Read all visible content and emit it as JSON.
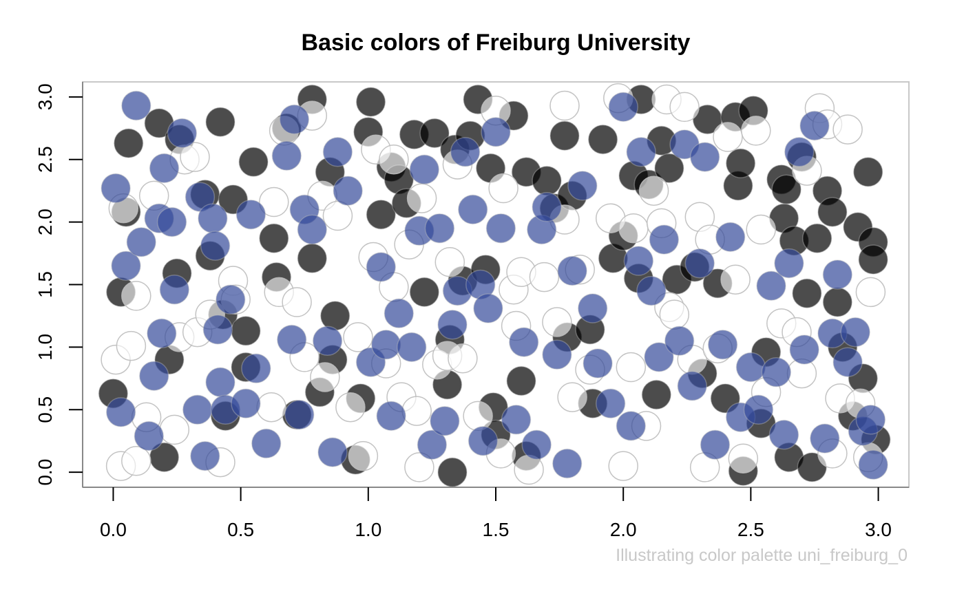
{
  "chart_data": {
    "type": "scatter",
    "title": "Basic colors of Freiburg University",
    "caption": "Illustrating color palette uni_freiburg_0",
    "xlabel": "",
    "ylabel": "",
    "xlim": [
      -0.12,
      3.12
    ],
    "ylim": [
      -0.12,
      3.12
    ],
    "x_ticks": [
      0.0,
      0.5,
      1.0,
      1.5,
      2.0,
      2.5,
      3.0
    ],
    "y_ticks": [
      0.0,
      0.5,
      1.0,
      1.5,
      2.0,
      2.5,
      3.0
    ],
    "x_tick_labels": [
      "0.0",
      "0.5",
      "1.0",
      "1.5",
      "2.0",
      "2.5",
      "3.0"
    ],
    "y_tick_labels": [
      "0.0",
      "0.5",
      "1.0",
      "1.5",
      "2.0",
      "2.5",
      "3.0"
    ],
    "grid": false,
    "palette": [
      "#000000",
      "#ffffff",
      "#344a9a"
    ],
    "series": [
      {
        "color": "#000000",
        "points": [
          [
            0.0,
            0.63
          ],
          [
            0.03,
            1.44
          ],
          [
            0.05,
            2.08
          ],
          [
            0.06,
            2.63
          ],
          [
            0.18,
            2.79
          ],
          [
            0.2,
            0.12
          ],
          [
            0.22,
            0.9
          ],
          [
            0.25,
            1.59
          ],
          [
            0.26,
            2.66
          ],
          [
            0.36,
            2.22
          ],
          [
            0.38,
            1.73
          ],
          [
            0.42,
            2.8
          ],
          [
            0.43,
            1.26
          ],
          [
            0.44,
            0.45
          ],
          [
            0.47,
            2.18
          ],
          [
            0.52,
            0.84
          ],
          [
            0.52,
            1.13
          ],
          [
            0.55,
            2.48
          ],
          [
            0.63,
            1.87
          ],
          [
            0.64,
            1.56
          ],
          [
            0.68,
            2.75
          ],
          [
            0.72,
            0.46
          ],
          [
            0.78,
            2.98
          ],
          [
            0.78,
            1.71
          ],
          [
            0.81,
            0.64
          ],
          [
            0.85,
            2.4
          ],
          [
            0.86,
            0.9
          ],
          [
            0.87,
            1.25
          ],
          [
            0.95,
            0.1
          ],
          [
            0.97,
            0.59
          ],
          [
            1.0,
            2.72
          ],
          [
            1.01,
            2.96
          ],
          [
            1.05,
            2.06
          ],
          [
            1.09,
            2.44
          ],
          [
            1.12,
            2.34
          ],
          [
            1.15,
            2.15
          ],
          [
            1.18,
            2.7
          ],
          [
            1.22,
            1.44
          ],
          [
            1.26,
            2.71
          ],
          [
            1.31,
            0.7
          ],
          [
            1.32,
            1.06
          ],
          [
            1.33,
            0.0
          ],
          [
            1.34,
            2.58
          ],
          [
            1.37,
            1.53
          ],
          [
            1.4,
            2.69
          ],
          [
            1.43,
            2.98
          ],
          [
            1.46,
            1.62
          ],
          [
            1.48,
            2.43
          ],
          [
            1.49,
            0.52
          ],
          [
            1.5,
            0.3
          ],
          [
            1.57,
            2.85
          ],
          [
            1.6,
            0.73
          ],
          [
            1.62,
            2.4
          ],
          [
            1.62,
            0.13
          ],
          [
            1.7,
            2.33
          ],
          [
            1.73,
            2.11
          ],
          [
            1.77,
            2.69
          ],
          [
            1.78,
            1.08
          ],
          [
            1.8,
            2.21
          ],
          [
            1.87,
            1.14
          ],
          [
            1.88,
            0.55
          ],
          [
            1.92,
            2.66
          ],
          [
            1.96,
            1.71
          ],
          [
            2.0,
            1.89
          ],
          [
            2.04,
            2.37
          ],
          [
            2.06,
            1.55
          ],
          [
            2.07,
            2.98
          ],
          [
            2.1,
            2.3
          ],
          [
            2.13,
            0.62
          ],
          [
            2.15,
            2.65
          ],
          [
            2.18,
            2.43
          ],
          [
            2.21,
            1.54
          ],
          [
            2.28,
            1.64
          ],
          [
            2.31,
            0.79
          ],
          [
            2.33,
            2.82
          ],
          [
            2.37,
            1.51
          ],
          [
            2.4,
            0.59
          ],
          [
            2.44,
            2.84
          ],
          [
            2.45,
            2.29
          ],
          [
            2.46,
            2.47
          ],
          [
            2.47,
            0.01
          ],
          [
            2.51,
            2.89
          ],
          [
            2.54,
            0.39
          ],
          [
            2.56,
            0.96
          ],
          [
            2.62,
            2.34
          ],
          [
            2.63,
            2.03
          ],
          [
            2.64,
            2.26
          ],
          [
            2.65,
            0.12
          ],
          [
            2.67,
            1.85
          ],
          [
            2.7,
            2.52
          ],
          [
            2.72,
            1.43
          ],
          [
            2.74,
            0.04
          ],
          [
            2.76,
            1.87
          ],
          [
            2.8,
            2.25
          ],
          [
            2.82,
            2.08
          ],
          [
            2.84,
            1.36
          ],
          [
            2.86,
            1.0
          ],
          [
            2.9,
            0.45
          ],
          [
            2.92,
            1.96
          ],
          [
            2.94,
            0.75
          ],
          [
            2.96,
            2.4
          ],
          [
            2.98,
            1.84
          ],
          [
            2.99,
            0.26
          ],
          [
            2.98,
            1.7
          ]
        ]
      },
      {
        "color": "#ffffff",
        "points": [
          [
            0.03,
            0.05
          ],
          [
            0.01,
            0.9
          ],
          [
            0.04,
            2.11
          ],
          [
            0.07,
            1.01
          ],
          [
            0.09,
            1.41
          ],
          [
            0.09,
            0.09
          ],
          [
            0.13,
            0.44
          ],
          [
            0.16,
            2.21
          ],
          [
            0.24,
            0.34
          ],
          [
            0.26,
            1.08
          ],
          [
            0.28,
            2.5
          ],
          [
            0.32,
            2.52
          ],
          [
            0.33,
            1.12
          ],
          [
            0.38,
            1.26
          ],
          [
            0.42,
            0.08
          ],
          [
            0.47,
            1.53
          ],
          [
            0.48,
            1.38
          ],
          [
            0.62,
            0.52
          ],
          [
            0.63,
            2.16
          ],
          [
            0.65,
            1.44
          ],
          [
            0.67,
            2.73
          ],
          [
            0.72,
            1.36
          ],
          [
            0.75,
            0.92
          ],
          [
            0.78,
            2.85
          ],
          [
            0.82,
            2.21
          ],
          [
            0.83,
            0.76
          ],
          [
            0.88,
            2.05
          ],
          [
            0.93,
            0.52
          ],
          [
            0.96,
            1.08
          ],
          [
            0.98,
            0.13
          ],
          [
            1.02,
            1.72
          ],
          [
            1.03,
            2.58
          ],
          [
            1.07,
            0.87
          ],
          [
            1.1,
            1.48
          ],
          [
            1.1,
            2.5
          ],
          [
            1.13,
            0.6
          ],
          [
            1.16,
            1.82
          ],
          [
            1.19,
            0.49
          ],
          [
            1.2,
            0.04
          ],
          [
            1.21,
            2.19
          ],
          [
            1.27,
            0.86
          ],
          [
            1.31,
            0.93
          ],
          [
            1.32,
            1.68
          ],
          [
            1.35,
            2.46
          ],
          [
            1.37,
            0.91
          ],
          [
            1.43,
            0.45
          ],
          [
            1.5,
            2.89
          ],
          [
            1.52,
            0.15
          ],
          [
            1.53,
            2.27
          ],
          [
            1.57,
            1.46
          ],
          [
            1.58,
            1.17
          ],
          [
            1.6,
            1.6
          ],
          [
            1.63,
            0.02
          ],
          [
            1.69,
            1.56
          ],
          [
            1.74,
            1.2
          ],
          [
            1.77,
            2.02
          ],
          [
            1.77,
            2.93
          ],
          [
            1.8,
            0.6
          ],
          [
            1.83,
            1.62
          ],
          [
            1.87,
            0.82
          ],
          [
            1.95,
            2.03
          ],
          [
            1.98,
            2.99
          ],
          [
            2.0,
            0.05
          ],
          [
            2.03,
            0.84
          ],
          [
            2.04,
            1.95
          ],
          [
            2.09,
            0.37
          ],
          [
            2.12,
            2.25
          ],
          [
            2.15,
            1.99
          ],
          [
            2.17,
            2.98
          ],
          [
            2.18,
            1.32
          ],
          [
            2.2,
            1.26
          ],
          [
            2.24,
            2.92
          ],
          [
            2.27,
            0.9
          ],
          [
            2.3,
            2.04
          ],
          [
            2.32,
            0.04
          ],
          [
            2.34,
            1.86
          ],
          [
            2.37,
            0.99
          ],
          [
            2.41,
            2.68
          ],
          [
            2.44,
            1.54
          ],
          [
            2.47,
            0.11
          ],
          [
            2.52,
            2.73
          ],
          [
            2.54,
            1.94
          ],
          [
            2.56,
            0.64
          ],
          [
            2.62,
            1.19
          ],
          [
            2.68,
            1.12
          ],
          [
            2.7,
            0.79
          ],
          [
            2.72,
            2.41
          ],
          [
            2.77,
            2.91
          ],
          [
            2.8,
            2.78
          ],
          [
            2.82,
            0.15
          ],
          [
            2.85,
            0.59
          ],
          [
            2.88,
            2.74
          ],
          [
            2.93,
            0.55
          ],
          [
            2.96,
            0.12
          ],
          [
            2.97,
            1.44
          ]
        ]
      },
      {
        "color": "#344a9a",
        "points": [
          [
            0.01,
            2.27
          ],
          [
            0.03,
            0.48
          ],
          [
            0.05,
            1.65
          ],
          [
            0.09,
            2.93
          ],
          [
            0.11,
            1.84
          ],
          [
            0.14,
            0.29
          ],
          [
            0.16,
            0.77
          ],
          [
            0.18,
            2.03
          ],
          [
            0.19,
            1.11
          ],
          [
            0.2,
            2.43
          ],
          [
            0.23,
            2.0
          ],
          [
            0.24,
            1.46
          ],
          [
            0.27,
            2.71
          ],
          [
            0.33,
            0.5
          ],
          [
            0.34,
            2.2
          ],
          [
            0.36,
            0.13
          ],
          [
            0.39,
            2.03
          ],
          [
            0.4,
            1.81
          ],
          [
            0.41,
            1.14
          ],
          [
            0.42,
            0.72
          ],
          [
            0.44,
            0.5
          ],
          [
            0.46,
            1.38
          ],
          [
            0.52,
            0.55
          ],
          [
            0.54,
            2.06
          ],
          [
            0.56,
            0.83
          ],
          [
            0.6,
            0.23
          ],
          [
            0.68,
            2.53
          ],
          [
            0.7,
            1.06
          ],
          [
            0.71,
            2.82
          ],
          [
            0.73,
            0.46
          ],
          [
            0.75,
            2.1
          ],
          [
            0.78,
            1.94
          ],
          [
            0.84,
            1.05
          ],
          [
            0.86,
            0.16
          ],
          [
            0.88,
            2.56
          ],
          [
            0.92,
            2.25
          ],
          [
            1.01,
            0.88
          ],
          [
            1.05,
            1.64
          ],
          [
            1.07,
            1.02
          ],
          [
            1.09,
            0.45
          ],
          [
            1.12,
            1.27
          ],
          [
            1.17,
            1.0
          ],
          [
            1.2,
            1.93
          ],
          [
            1.22,
            2.42
          ],
          [
            1.25,
            0.22
          ],
          [
            1.28,
            1.95
          ],
          [
            1.3,
            0.41
          ],
          [
            1.33,
            1.18
          ],
          [
            1.35,
            1.45
          ],
          [
            1.38,
            2.56
          ],
          [
            1.41,
            2.1
          ],
          [
            1.44,
            1.5
          ],
          [
            1.45,
            0.25
          ],
          [
            1.47,
            1.31
          ],
          [
            1.5,
            2.72
          ],
          [
            1.52,
            1.95
          ],
          [
            1.58,
            0.42
          ],
          [
            1.61,
            1.04
          ],
          [
            1.66,
            0.22
          ],
          [
            1.68,
            1.94
          ],
          [
            1.7,
            2.12
          ],
          [
            1.74,
            0.94
          ],
          [
            1.78,
            0.07
          ],
          [
            1.8,
            1.61
          ],
          [
            1.84,
            2.29
          ],
          [
            1.88,
            1.31
          ],
          [
            1.9,
            0.87
          ],
          [
            1.95,
            0.55
          ],
          [
            2.0,
            2.92
          ],
          [
            2.03,
            0.37
          ],
          [
            2.06,
            1.69
          ],
          [
            2.07,
            2.56
          ],
          [
            2.11,
            1.45
          ],
          [
            2.14,
            0.92
          ],
          [
            2.16,
            1.86
          ],
          [
            2.22,
            1.05
          ],
          [
            2.24,
            2.62
          ],
          [
            2.27,
            0.69
          ],
          [
            2.3,
            1.67
          ],
          [
            2.32,
            2.52
          ],
          [
            2.36,
            0.22
          ],
          [
            2.39,
            1.02
          ],
          [
            2.42,
            1.88
          ],
          [
            2.46,
            0.44
          ],
          [
            2.5,
            0.84
          ],
          [
            2.53,
            0.5
          ],
          [
            2.58,
            1.49
          ],
          [
            2.6,
            0.8
          ],
          [
            2.63,
            0.3
          ],
          [
            2.65,
            1.67
          ],
          [
            2.69,
            2.56
          ],
          [
            2.71,
            0.98
          ],
          [
            2.75,
            2.77
          ],
          [
            2.79,
            0.27
          ],
          [
            2.82,
            1.11
          ],
          [
            2.84,
            1.58
          ],
          [
            2.88,
            0.88
          ],
          [
            2.91,
            1.12
          ],
          [
            2.94,
            0.33
          ],
          [
            2.97,
            0.42
          ],
          [
            2.98,
            0.06
          ]
        ]
      }
    ]
  }
}
